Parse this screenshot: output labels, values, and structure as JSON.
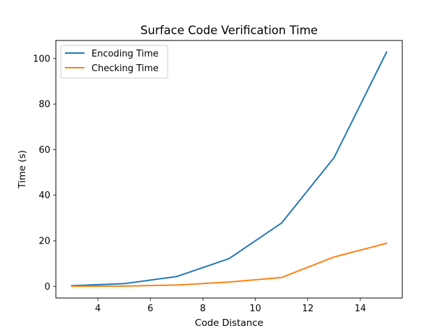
{
  "chart_data": {
    "type": "line",
    "title": "Surface Code Verification Time",
    "xlabel": "Code Distance",
    "ylabel": "Time (s)",
    "x": [
      3,
      5,
      7,
      9,
      11,
      13,
      15
    ],
    "series": [
      {
        "name": "Encoding Time",
        "color": "#1f77b4",
        "values": [
          0.3,
          1.2,
          4.3,
          12.2,
          27.8,
          56.5,
          102.8
        ]
      },
      {
        "name": "Checking Time",
        "color": "#ff7f0e",
        "values": [
          0.05,
          0.15,
          0.6,
          1.9,
          3.9,
          12.9,
          18.9
        ]
      }
    ],
    "xlim": [
      2.4,
      15.6
    ],
    "ylim": [
      -5.1,
      107.9
    ],
    "xticks": [
      4,
      6,
      8,
      10,
      12,
      14
    ],
    "yticks": [
      0,
      20,
      40,
      60,
      80,
      100
    ],
    "grid": false,
    "legend_position": "top-left"
  }
}
